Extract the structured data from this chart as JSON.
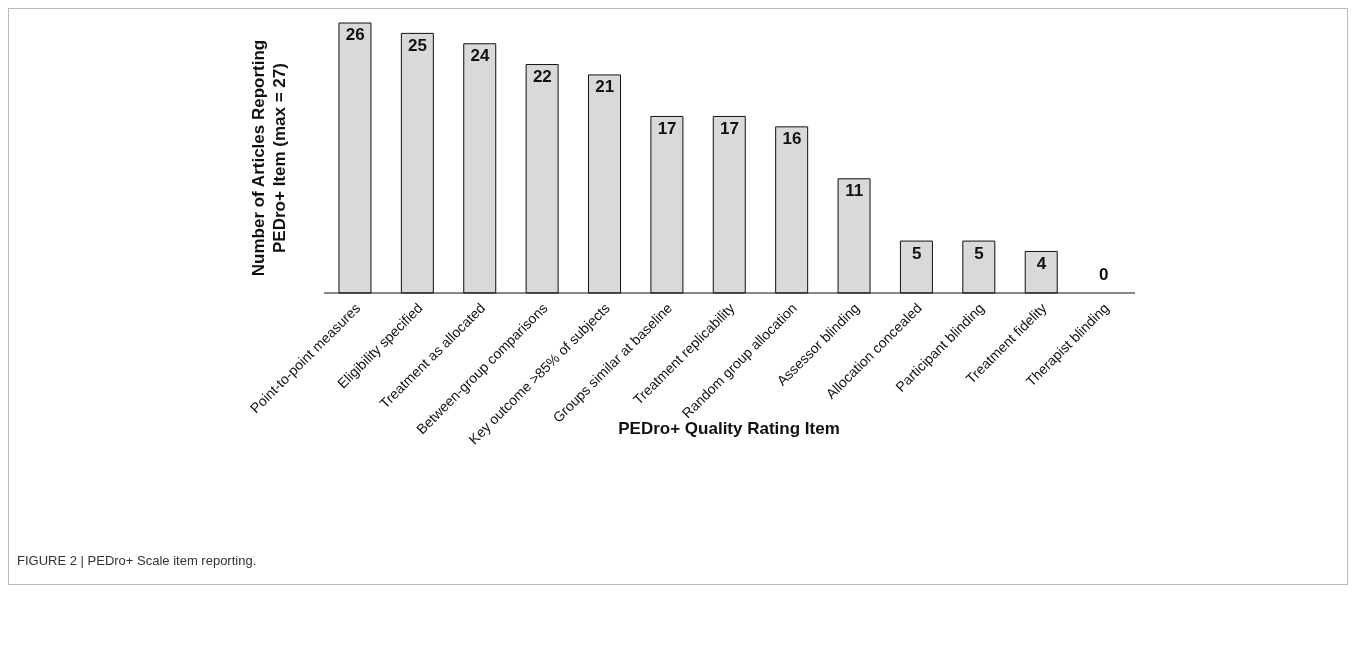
{
  "chart_data": {
    "type": "bar",
    "xlabel": "PEDro+ Quality Rating Item",
    "ylabel": "Number of Articles Reporting\nPEDro+ Item (max = 27)",
    "categories": [
      "Point-to-point measures",
      "Eligibility specified",
      "Treatment as allocated",
      "Between-group comparisons",
      "Key outcome >85% of subjects",
      "Groups similar at baseline",
      "Treatment replicability",
      "Random group allocation",
      "Assessor blinding",
      "Allocation concealed",
      "Participant blinding",
      "Treatment fidelity",
      "Therapist blinding"
    ],
    "values": [
      26,
      25,
      24,
      22,
      21,
      17,
      17,
      16,
      11,
      5,
      5,
      4,
      0
    ],
    "color": "#d9d9d9",
    "data_labels": true,
    "grid": false,
    "legend": false,
    "annotations": [
      "FIGURE 2 | PEDro+ Scale item reporting."
    ]
  }
}
